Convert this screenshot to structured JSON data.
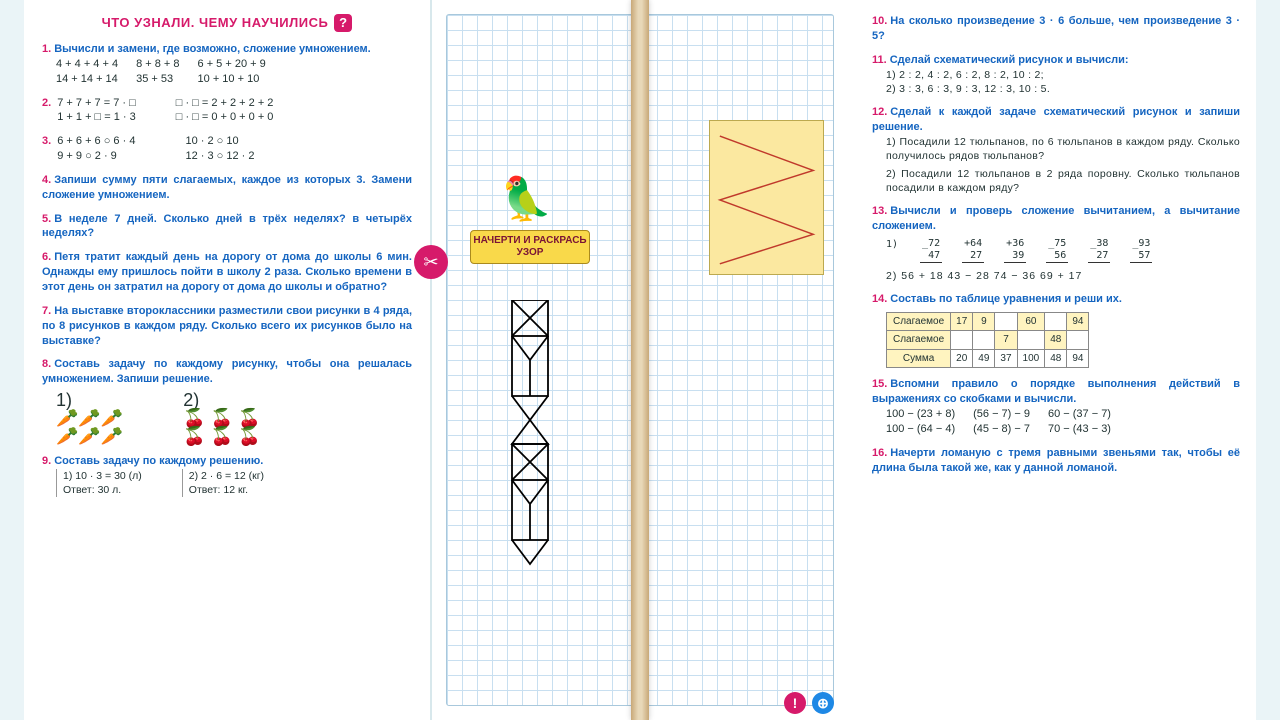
{
  "header": "ЧТО УЗНАЛИ. ЧЕМУ НАУЧИЛИСЬ",
  "left": {
    "p1": {
      "t": "Вычисли и замени, где возможно, сложение умножением.",
      "c1": [
        "4 + 4 + 4 + 4",
        "14 + 14 + 14"
      ],
      "c2": [
        "8 + 8 + 8",
        "35 + 53"
      ],
      "c3": [
        "6 + 5 + 20 + 9",
        "10 + 10 + 10"
      ]
    },
    "p2": {
      "c1": [
        "7 + 7 + 7 = 7 · □",
        "1 + 1 + □ = 1 · 3"
      ],
      "c2": [
        "□ · □ = 2 + 2 + 2 + 2",
        "□ · □ = 0 + 0 + 0 + 0"
      ]
    },
    "p3": {
      "c1": [
        "6 + 6 + 6 ○ 6 · 4",
        "9 + 9 ○ 2 · 9"
      ],
      "c2": [
        "10 · 2 ○ 10",
        "12 · 3 ○ 12 · 2"
      ]
    },
    "p4": "Запиши сумму пяти слагаемых, каждое из которых 3. Замени сложение умножением.",
    "p5": "В неделе 7 дней. Сколько дней в трёх неделях? в четырёх неделях?",
    "p6": "Петя тратит каждый день на дорогу от дома до школы 6 мин. Однажды ему пришлось пойти в школу 2 раза. Сколько времени в этот день он затратил на дорогу от дома до школы и обратно?",
    "p7": "На выставке второклассники разместили свои рисунки в 4 ряда, по 8 рисунков в каждом ряду. Сколько всего их рисунков было на выставке?",
    "p8": "Составь задачу по каждому рисунку, чтобы она решалась умножением. Запиши решение.",
    "p9": "Составь задачу по каждому решению.",
    "p9a": [
      "1) 10 · 3 = 30  (л)",
      "Ответ:  30 л."
    ],
    "p9b": [
      "2) 2 · 6 = 12  (кг)",
      "Ответ:  12 кг."
    ]
  },
  "mid": {
    "label": "НАЧЕРТИ И РАСКРАСЬ УЗОР"
  },
  "right": {
    "p10": "На сколько произведение 3 · 6 больше, чем произведение 3 · 5?",
    "p11": {
      "t": "Сделай схематический рисунок и вычисли:",
      "a": "1)  2 : 2,  4 : 2,  6 : 2,  8 : 2,  10 : 2;",
      "b": "2)  3 : 3,  6 : 3,  9 : 3,  12 : 3,  10 : 5."
    },
    "p12": {
      "t": "Сделай к каждой задаче схематический рисунок и запиши решение.",
      "a": "1) Посадили 12 тюльпанов, по 6 тюльпанов в каждом ряду. Сколько получилось рядов тюльпанов?",
      "b": "2) Посадили 12 тюльпанов в 2 ряда поровну. Сколько тюльпанов посадили в каждом ряду?"
    },
    "p13": {
      "t": "Вычисли и проверь сложение вычитанием, а вычитание сложением.",
      "row1": [
        "_72|  47",
        "+64|  27",
        "+36|  39",
        "_75|  56",
        "_38|  27",
        "_93|  57"
      ],
      "row2": "2)  56 + 18        43 − 28        74 − 36        69 + 17"
    },
    "p14": {
      "t": "Составь по таблице уравнения и реши их.",
      "table": {
        "r1": [
          "Слагаемое",
          "17",
          "9",
          "",
          "60",
          "",
          "94"
        ],
        "r2": [
          "Слагаемое",
          "",
          "",
          "7",
          "",
          "48",
          ""
        ],
        "r3": [
          "Сумма",
          "20",
          "49",
          "37",
          "100",
          "48",
          "94"
        ]
      }
    },
    "p15": {
      "t": "Вспомни правило о порядке выполнения действий в выражениях со скобками и вычисли.",
      "c1": [
        "100 − (23 + 8)",
        "100 − (64 − 4)"
      ],
      "c2": [
        "(56 − 7) − 9",
        "(45 − 8) − 7"
      ],
      "c3": [
        "60 − (37 − 7)",
        "70 − (43 − 3)"
      ]
    },
    "p16": "Начерти ломаную с тремя равными звеньями так, чтобы её длина была такой же, как у данной ломаной."
  }
}
